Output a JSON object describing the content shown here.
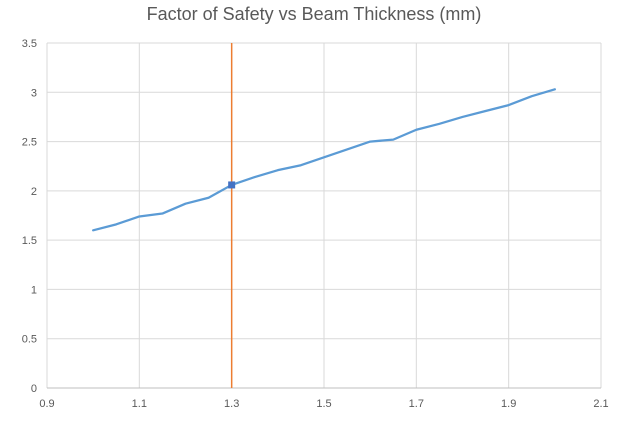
{
  "chart_data": {
    "type": "line",
    "title": "Factor of Safety vs Beam Thickness (mm)",
    "xlabel": "",
    "ylabel": "",
    "xlim": [
      0.9,
      2.1
    ],
    "ylim": [
      0,
      3.5
    ],
    "xticks": [
      0.9,
      1.1,
      1.3,
      1.5,
      1.7,
      1.9,
      2.1
    ],
    "yticks": [
      0,
      0.5,
      1,
      1.5,
      2,
      2.5,
      3,
      3.5
    ],
    "xtick_labels": [
      "0.9",
      "1.1",
      "1.3",
      "1.5",
      "1.7",
      "1.9",
      "2.1"
    ],
    "ytick_labels": [
      "0",
      "0.5",
      "1",
      "1.5",
      "2",
      "2.5",
      "3",
      "3.5"
    ],
    "grid": true,
    "series": [
      {
        "name": "Factor of Safety",
        "color": "#5B9BD5",
        "x": [
          1.0,
          1.05,
          1.1,
          1.15,
          1.2,
          1.25,
          1.3,
          1.35,
          1.4,
          1.45,
          1.5,
          1.55,
          1.6,
          1.65,
          1.7,
          1.75,
          1.8,
          1.85,
          1.9,
          1.95,
          2.0
        ],
        "y": [
          1.6,
          1.66,
          1.74,
          1.77,
          1.87,
          1.93,
          2.06,
          2.14,
          2.21,
          2.26,
          2.34,
          2.42,
          2.5,
          2.52,
          2.62,
          2.68,
          2.75,
          2.81,
          2.87,
          2.96,
          3.03
        ]
      }
    ],
    "highlight_point": {
      "x": 1.3,
      "y": 2.06,
      "color": "#4472C4"
    },
    "vertical_line": {
      "x": 1.3,
      "color": "#ED7D31"
    }
  }
}
